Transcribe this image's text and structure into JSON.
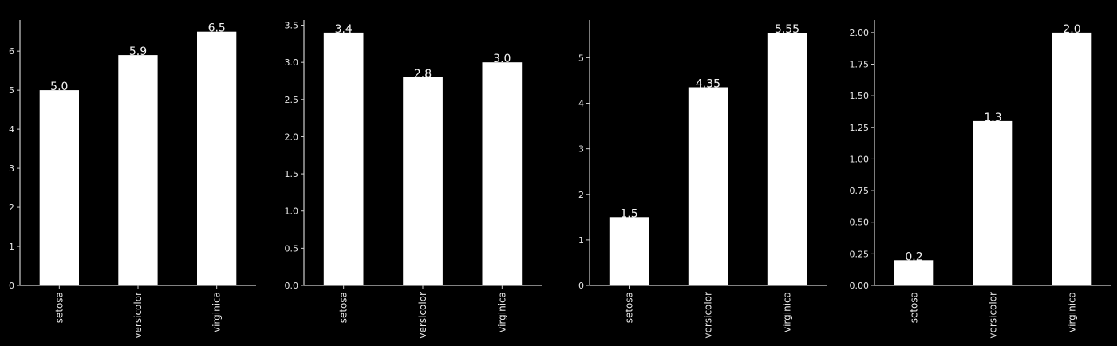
{
  "colors": {
    "background": "#000000",
    "bar": "#ffffff",
    "axis": "#cfcfcf",
    "text": "#e8e8e8"
  },
  "chart_data": [
    {
      "type": "bar",
      "categories": [
        "setosa",
        "versicolor",
        "virginica"
      ],
      "values": [
        5.0,
        5.9,
        6.5
      ],
      "value_labels": [
        "5.0",
        "5.9",
        "6.5"
      ],
      "ylim": [
        0,
        6.8
      ],
      "yticks": [
        0,
        1,
        2,
        3,
        4,
        5,
        6
      ],
      "ytick_labels": [
        "0",
        "1",
        "2",
        "3",
        "4",
        "5",
        "6"
      ],
      "grid": false
    },
    {
      "type": "bar",
      "categories": [
        "setosa",
        "versicolor",
        "virginica"
      ],
      "values": [
        3.4,
        2.8,
        3.0
      ],
      "value_labels": [
        "3.4",
        "2.8",
        "3.0"
      ],
      "ylim": [
        0,
        3.57
      ],
      "yticks": [
        0,
        0.5,
        1.0,
        1.5,
        2.0,
        2.5,
        3.0,
        3.5
      ],
      "ytick_labels": [
        "0.0",
        "0.5",
        "1.0",
        "1.5",
        "2.0",
        "2.5",
        "3.0",
        "3.5"
      ],
      "grid": false
    },
    {
      "type": "bar",
      "categories": [
        "setosa",
        "versicolor",
        "virginica"
      ],
      "values": [
        1.5,
        4.35,
        5.55
      ],
      "value_labels": [
        "1.5",
        "4.35",
        "5.55"
      ],
      "ylim": [
        0,
        5.83
      ],
      "yticks": [
        0,
        1,
        2,
        3,
        4,
        5
      ],
      "ytick_labels": [
        "0",
        "1",
        "2",
        "3",
        "4",
        "5"
      ],
      "grid": false
    },
    {
      "type": "bar",
      "categories": [
        "setosa",
        "versicolor",
        "virginica"
      ],
      "values": [
        0.2,
        1.3,
        2.0
      ],
      "value_labels": [
        "0.2",
        "1.3",
        "2.0"
      ],
      "ylim": [
        0,
        2.1
      ],
      "yticks": [
        0,
        0.25,
        0.5,
        0.75,
        1.0,
        1.25,
        1.5,
        1.75,
        2.0
      ],
      "ytick_labels": [
        "0.00",
        "0.25",
        "0.50",
        "0.75",
        "1.00",
        "1.25",
        "1.50",
        "1.75",
        "2.00"
      ],
      "grid": false
    }
  ]
}
